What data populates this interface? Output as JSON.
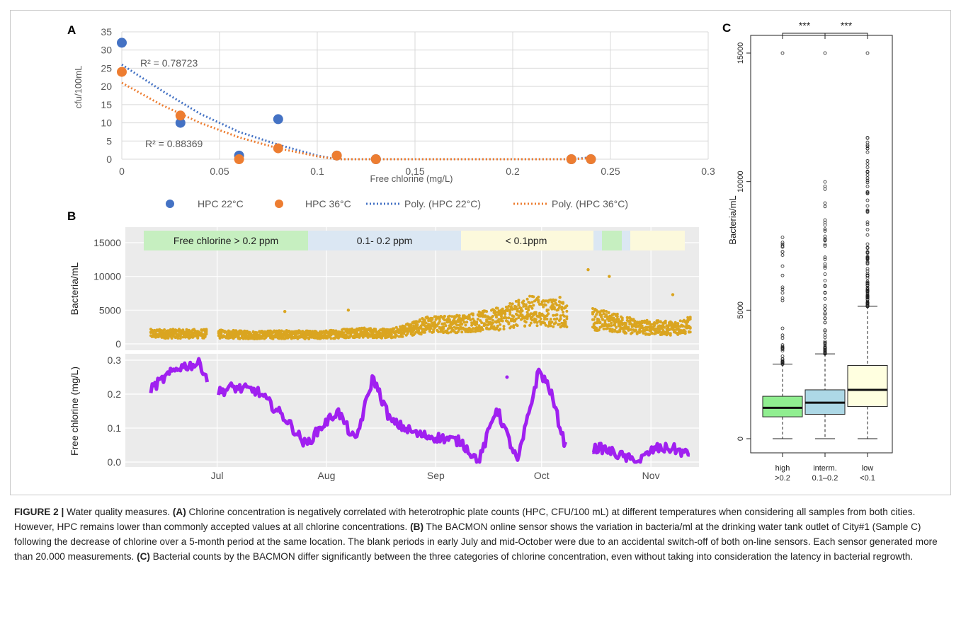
{
  "panelA": {
    "letter": "A",
    "ylabel": "cfu/100mL",
    "xlabel": "Free chlorine (mg/L)",
    "r2_22": "R² = 0.78723",
    "r2_36": "R² = 0.88369",
    "legend": [
      "HPC 22°C",
      "HPC 36°C",
      "Poly.  (HPC 22°C)",
      "Poly.  (HPC 36°C)"
    ],
    "colors": {
      "hpc22": "#4472c4",
      "hpc36": "#ed7d31"
    }
  },
  "panelB": {
    "letter": "B",
    "ylabel_top": "Bacteria/mL",
    "ylabel_bottom": "Free chlorine (mg/L)",
    "bands": [
      {
        "label": "Free chlorine > 0.2 ppm",
        "color": "#c6efc0"
      },
      {
        "label": "0.1- 0.2 ppm",
        "color": "#dbe7f3"
      },
      {
        "label": "< 0.1ppm",
        "color": "#fcf9dc"
      }
    ],
    "colors": {
      "bacteria": "#daa520",
      "chlorine": "#a020f0"
    }
  },
  "panelC": {
    "letter": "C",
    "ylabel": "Bacteria/mL",
    "sig": [
      "***",
      "***"
    ],
    "categories": [
      "high\n>0.2",
      "interm.\n0.1–0.2",
      "low\n<0.1"
    ],
    "colors": [
      "#90ee90",
      "#add8e6",
      "#ffffe0"
    ]
  },
  "caption": {
    "lead": "FIGURE 2 |",
    "title": " Water quality measures. ",
    "a_tag": "(A)",
    "a_text": " Chlorine concentration is negatively correlated with heterotrophic plate counts (HPC, CFU/100 mL) at different temperatures when considering all samples from both cities. However, HPC remains lower than commonly accepted values at all chlorine concentrations. ",
    "b_tag": "(B)",
    "b_text": " The BACMON online sensor shows the variation in bacteria/ml at the drinking water tank outlet of City#1 (Sample C) following the decrease of chlorine over a 5-month period at the same location. The blank periods in early July and mid-October were due to an accidental switch-off of both on-line sensors. Each sensor generated more than 20.000 measurements. ",
    "c_tag": "(C)",
    "c_text": " Bacterial counts by the BACMON differ significantly between the three categories of chlorine concentration, even without taking into consideration the latency in bacterial regrowth."
  },
  "chart_data": [
    {
      "type": "scatter",
      "title": "",
      "xlabel": "Free chlorine (mg/L)",
      "ylabel": "cfu/100mL",
      "xlim": [
        0,
        0.3
      ],
      "ylim": [
        0,
        35
      ],
      "xticks": [
        0,
        0.05,
        0.1,
        0.15,
        0.2,
        0.25,
        0.3
      ],
      "yticks": [
        0,
        5,
        10,
        15,
        20,
        25,
        30,
        35
      ],
      "grid": true,
      "legend_position": "bottom",
      "series": [
        {
          "name": "HPC 22°C",
          "x": [
            0,
            0.03,
            0.06,
            0.08,
            0.11,
            0.13,
            0.23,
            0.24
          ],
          "y": [
            32,
            10,
            1,
            11,
            1,
            0,
            0,
            0
          ]
        },
        {
          "name": "HPC 36°C",
          "x": [
            0,
            0.03,
            0.06,
            0.08,
            0.11,
            0.13,
            0.23,
            0.24
          ],
          "y": [
            24,
            12,
            0,
            3,
            1,
            0,
            0,
            0
          ]
        },
        {
          "name": "Poly.  (HPC 22°C)",
          "style": "dotted",
          "x": [
            0,
            0.02,
            0.04,
            0.06,
            0.08,
            0.1,
            0.11,
            0.23,
            0.24
          ],
          "y": [
            26,
            19,
            12.5,
            7.5,
            4,
            1,
            0,
            0,
            0.5
          ]
        },
        {
          "name": "Poly.  (HPC 36°C)",
          "style": "dotted",
          "x": [
            0,
            0.02,
            0.04,
            0.06,
            0.08,
            0.1,
            0.11,
            0.23,
            0.24
          ],
          "y": [
            21,
            15,
            10,
            6,
            3,
            0.8,
            0,
            0,
            0.3
          ]
        }
      ],
      "annotations": [
        "R² = 0.78723",
        "R² = 0.88369"
      ]
    },
    {
      "type": "scatter",
      "title": "",
      "ylabel": "Bacteria/mL",
      "xticks": [
        "Jul",
        "Aug",
        "Sep",
        "Oct",
        "Nov"
      ],
      "ylim": [
        0,
        16000
      ],
      "yticks": [
        0,
        5000,
        10000,
        15000
      ],
      "series": [
        {
          "name": "",
          "x": [
            10,
            20,
            30,
            40,
            50,
            60,
            70,
            80,
            90,
            100,
            110,
            130,
            140,
            150,
            155
          ],
          "y": [
            1500,
            1500,
            1300,
            1400,
            1300,
            1700,
            1500,
            2800,
            3000,
            3600,
            5000,
            3500,
            2500,
            2300,
            2800
          ]
        }
      ]
    },
    {
      "type": "line",
      "title": "",
      "ylabel": "Free chlorine (mg/L)",
      "xticks": [
        "Jul",
        "Aug",
        "Sep",
        "Oct",
        "Nov"
      ],
      "ylim": [
        0,
        0.33
      ],
      "yticks": [
        0.0,
        0.1,
        0.2,
        0.3
      ],
      "series": [
        {
          "name": "",
          "x": [
            0,
            10,
            16,
            20,
            25,
            32,
            40,
            46,
            50,
            55,
            60,
            65,
            70,
            78,
            85,
            90,
            95,
            100,
            106,
            112,
            115,
            120,
            125,
            130,
            135,
            140,
            145,
            150,
            155
          ],
          "y": [
            0.2,
            0.28,
            0.29,
            0.2,
            0.22,
            0.21,
            0.13,
            0.05,
            0.1,
            0.15,
            0.06,
            0.25,
            0.12,
            0.08,
            0.07,
            0.06,
            0.0,
            0.16,
            0.0,
            0.27,
            0.22,
            0.03,
            0.04,
            0.04,
            0.02,
            0.0,
            0.04,
            0.04,
            0.02
          ]
        }
      ]
    },
    {
      "type": "box",
      "title": "",
      "ylabel": "Bacteria/mL",
      "categories": [
        "high >0.2",
        "interm. 0.1–0.2",
        "low <0.1"
      ],
      "yticks": [
        0,
        5000,
        10000,
        15000
      ],
      "boxes": [
        {
          "min": 0,
          "q1": 850,
          "median": 1200,
          "q3": 1650,
          "max": 2900,
          "outlier_max": 15000
        },
        {
          "min": 0,
          "q1": 950,
          "median": 1400,
          "q3": 1900,
          "max": 3300,
          "outlier_max": 15000
        },
        {
          "min": 0,
          "q1": 1250,
          "median": 1900,
          "q3": 2850,
          "max": 5150,
          "outlier_max": 15000
        }
      ],
      "significance": [
        "***",
        "***"
      ]
    }
  ]
}
